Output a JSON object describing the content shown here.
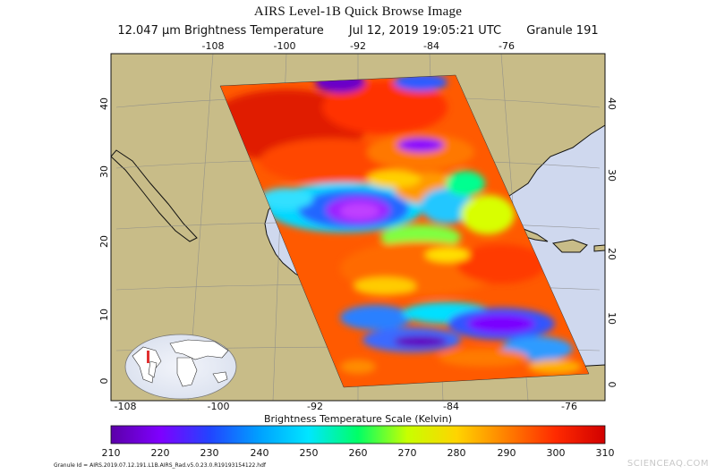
{
  "header": {
    "title": "AIRS Level-1B Quick Browse Image",
    "channel": "12.047 μm Brightness Temperature",
    "datetime": "Jul 12, 2019 19:05:21 UTC",
    "granule": "Granule 191"
  },
  "map": {
    "lon_ticks_top": [
      "-108",
      "-100",
      "-92",
      "-84",
      "-76"
    ],
    "lon_ticks_bottom": [
      "-108",
      "-100",
      "-92",
      "-84",
      "-76"
    ],
    "lat_ticks_left": [
      "40",
      "30",
      "20",
      "10",
      "0"
    ],
    "lat_ticks_right": [
      "40",
      "30",
      "20",
      "10",
      "0"
    ],
    "colors": {
      "ocean": "#cfd8ee",
      "land": "#c8bc88",
      "coastline": "#111111"
    }
  },
  "scale": {
    "title": "Brightness Temperature Scale (Kelvin)",
    "ticks": [
      "210",
      "220",
      "230",
      "240",
      "250",
      "260",
      "270",
      "280",
      "290",
      "300",
      "310"
    ],
    "colors": [
      "#5b00a8",
      "#7f00ff",
      "#2244ff",
      "#00a0ff",
      "#00e6ff",
      "#00ff66",
      "#c8ff00",
      "#ffd400",
      "#ff8000",
      "#ff2a00",
      "#d10000"
    ]
  },
  "footer": {
    "granule_id": "Granule Id = AIRS.2019.07.12.191.L1B.AIRS_Rad.v5.0.23.0.R19193154122.hdf",
    "watermark": "SCIENCEAQ.COM"
  }
}
